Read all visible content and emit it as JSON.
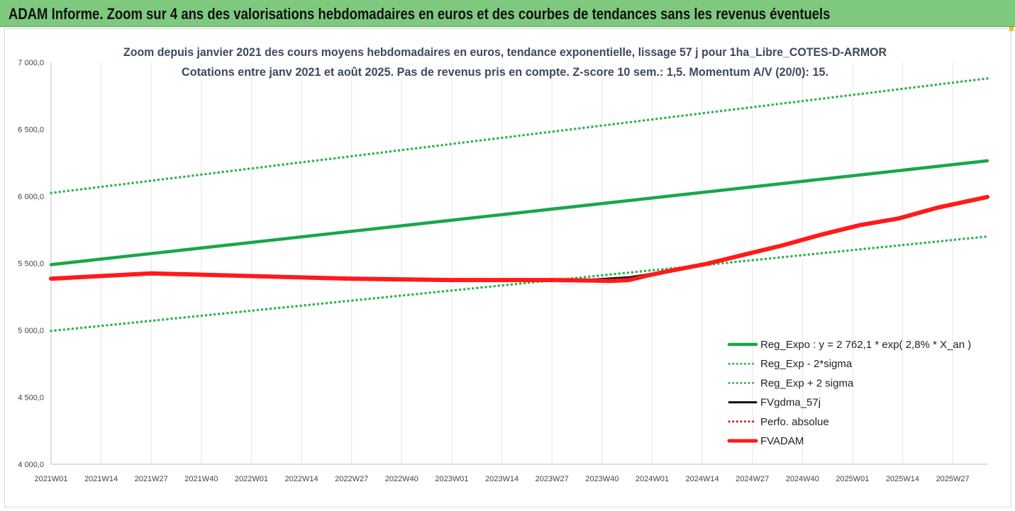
{
  "banner": {
    "title": "ADAM Informe. Zoom sur 4 ans des valorisations hebdomadaires en euros et des courbes de tendances sans les revenus éventuels"
  },
  "chart_data": {
    "type": "line",
    "title": "Zoom depuis janvier 2021 des cours moyens hebdomadaires en euros, tendance exponentielle, lissage 57 j pour 1ha_Libre_COTES-D-ARMOR",
    "subtitle": "Cotations entre janv 2021 et août 2025. Pas de revenus pris en compte. Z-score 10 sem.: 1,5. Momentum A/V (20/0): 15.",
    "xlabel": "",
    "ylabel": "",
    "ylim": [
      4000,
      7000
    ],
    "y_ticks": [
      "4 000,0",
      "4 500,0",
      "5 000,0",
      "5 500,0",
      "6 000,0",
      "6 500,0",
      "7 000,0"
    ],
    "x_ticks": [
      "2021W01",
      "2021W14",
      "2021W27",
      "2021W40",
      "2022W01",
      "2022W14",
      "2022W27",
      "2022W40",
      "2023W01",
      "2023W14",
      "2023W27",
      "2023W40",
      "2024W01",
      "2024W14",
      "2024W27",
      "2024W40",
      "2025W01",
      "2025W14",
      "2025W27"
    ],
    "x_range_weeks": [
      0,
      243
    ],
    "grid": "vertical",
    "legend_position": "bottom-right",
    "series": [
      {
        "name": "Reg_Expo : y = 2 762,1 * exp( 2,8% *  X_an )",
        "color": "#1aa64a",
        "style": "solid-thick",
        "points": [
          [
            0,
            5490
          ],
          [
            243,
            6265
          ]
        ]
      },
      {
        "name": "Reg_Exp - 2*sigma",
        "color": "#2fb556",
        "style": "dotted",
        "points": [
          [
            0,
            4995
          ],
          [
            243,
            5700
          ]
        ]
      },
      {
        "name": "Reg_Exp + 2 sigma",
        "color": "#2fb556",
        "style": "dotted",
        "points": [
          [
            0,
            6025
          ],
          [
            243,
            6880
          ]
        ]
      },
      {
        "name": "FVgdma_57j",
        "color": "#111111",
        "style": "solid",
        "points": [
          [
            0,
            5385
          ],
          [
            26,
            5425
          ],
          [
            52,
            5405
          ],
          [
            78,
            5385
          ],
          [
            104,
            5375
          ],
          [
            130,
            5375
          ],
          [
            140,
            5378
          ],
          [
            150,
            5395
          ],
          [
            160,
            5440
          ],
          [
            170,
            5495
          ],
          [
            180,
            5560
          ],
          [
            190,
            5630
          ],
          [
            200,
            5710
          ],
          [
            210,
            5780
          ],
          [
            220,
            5835
          ],
          [
            230,
            5915
          ],
          [
            243,
            5995
          ]
        ]
      },
      {
        "name": "Perfo. absolue",
        "color": "#e01010",
        "style": "dotted",
        "points": []
      },
      {
        "name": "FVADAM",
        "color": "#ff1a1a",
        "style": "solid-thick",
        "points": [
          [
            0,
            5385
          ],
          [
            26,
            5425
          ],
          [
            52,
            5405
          ],
          [
            78,
            5385
          ],
          [
            104,
            5375
          ],
          [
            130,
            5375
          ],
          [
            140,
            5372
          ],
          [
            145,
            5368
          ],
          [
            150,
            5375
          ],
          [
            155,
            5410
          ],
          [
            160,
            5440
          ],
          [
            170,
            5495
          ],
          [
            180,
            5565
          ],
          [
            190,
            5635
          ],
          [
            200,
            5715
          ],
          [
            210,
            5785
          ],
          [
            220,
            5835
          ],
          [
            230,
            5915
          ],
          [
            243,
            5995
          ]
        ]
      }
    ]
  }
}
